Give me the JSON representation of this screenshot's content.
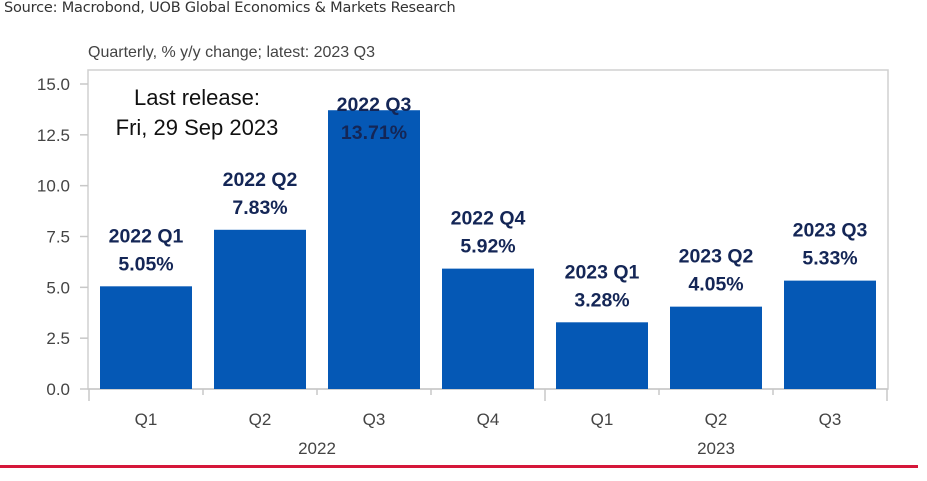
{
  "source": "Source: Macrobond, UOB Global Economics & Markets Research",
  "colors": {
    "bar": "#0558b5",
    "label": "#142656",
    "axis_text": "#444444",
    "frame": "#d0d0d0",
    "rule": "#d5173a"
  },
  "chart_data": {
    "type": "bar",
    "title": "",
    "subtitle": "Quarterly, % y/y change; latest: 2023 Q3",
    "annotation": [
      "Last release:",
      "Fri, 29 Sep 2023"
    ],
    "categories": [
      "Q1",
      "Q2",
      "Q3",
      "Q4",
      "Q1",
      "Q2",
      "Q3"
    ],
    "category_groups": [
      {
        "label": "2022",
        "span": 4
      },
      {
        "label": "2023",
        "span": 3
      }
    ],
    "values": [
      5.05,
      7.83,
      13.71,
      5.92,
      3.28,
      4.05,
      5.33
    ],
    "data_labels": [
      [
        "2022 Q1",
        "5.05%"
      ],
      [
        "2022 Q2",
        "7.83%"
      ],
      [
        "2022 Q3",
        "13.71%"
      ],
      [
        "2022 Q4",
        "5.92%"
      ],
      [
        "2023 Q1",
        "3.28%"
      ],
      [
        "2023 Q2",
        "4.05%"
      ],
      [
        "2023 Q3",
        "5.33%"
      ]
    ],
    "xlabel": "",
    "ylabel": "",
    "ylim": [
      0,
      15
    ],
    "yticks": [
      "0.0",
      "2.5",
      "5.0",
      "7.5",
      "10.0",
      "12.5",
      "15.0"
    ],
    "ytick_values": [
      0,
      2.5,
      5,
      7.5,
      10,
      12.5,
      15
    ],
    "grid": false,
    "legend": "none"
  }
}
